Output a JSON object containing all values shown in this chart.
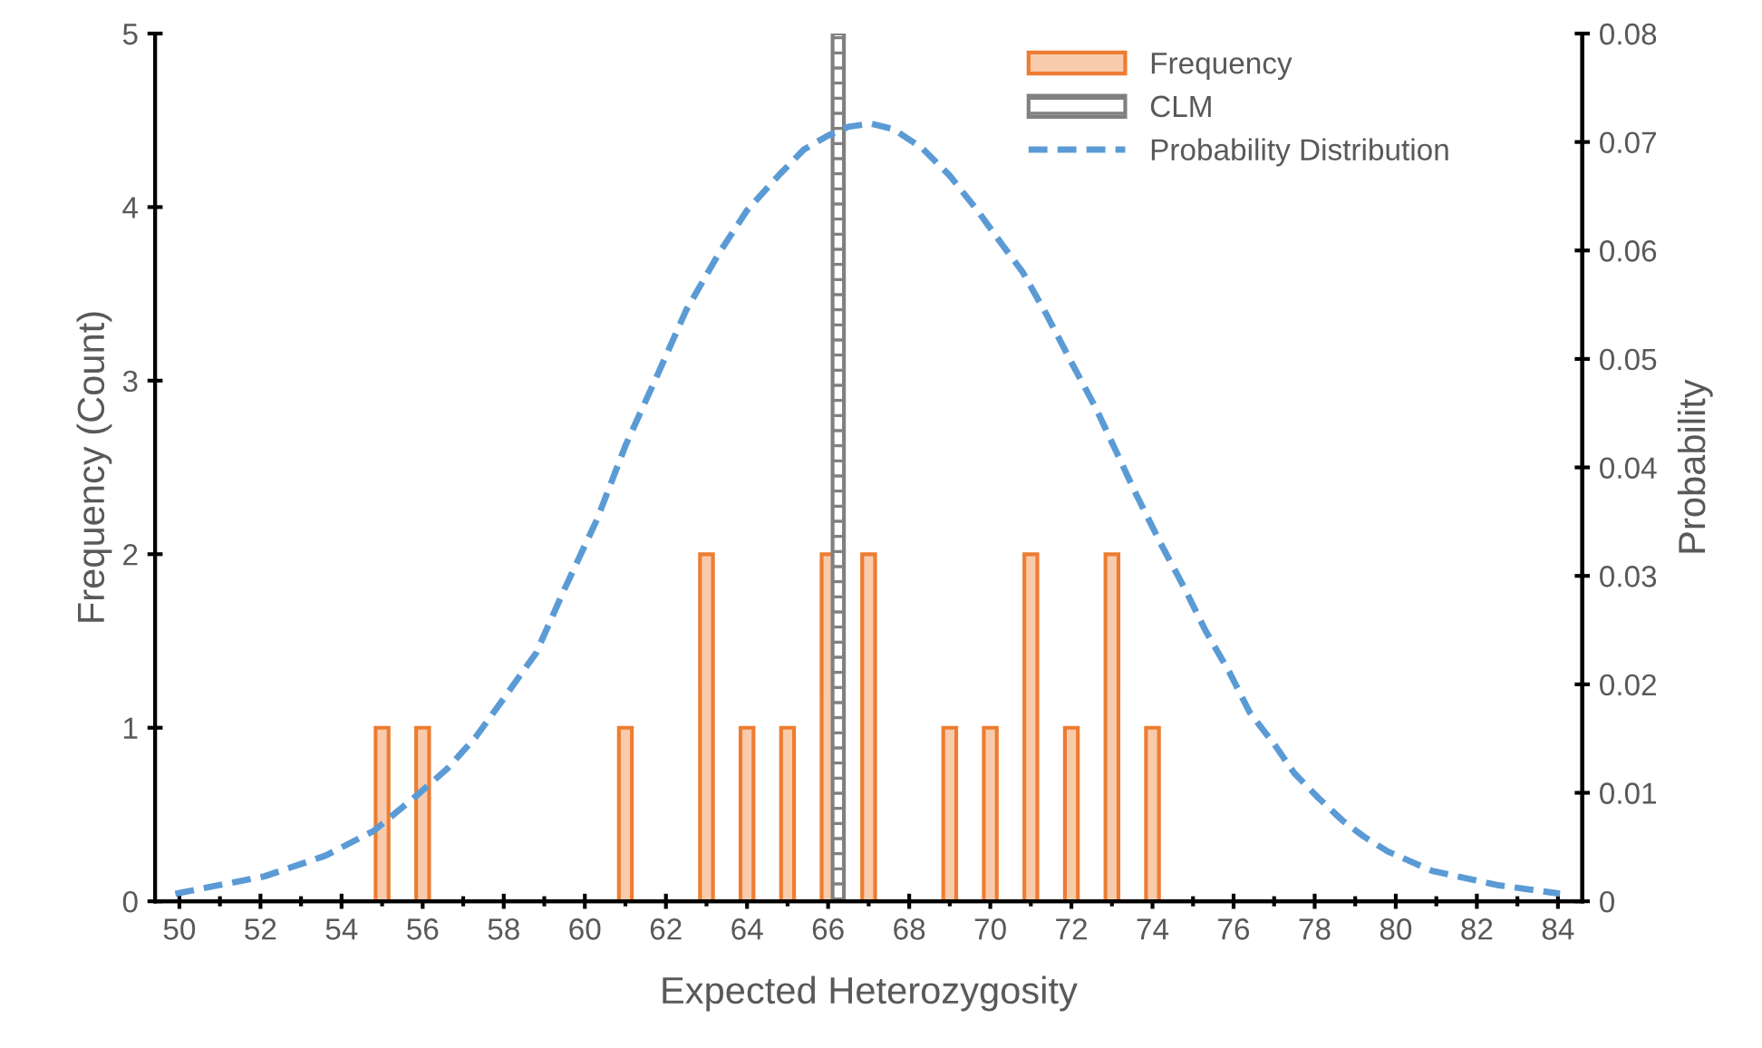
{
  "chart_data": {
    "type": "bar",
    "xlabel": "Expected Heterozygosity",
    "ylabel": "Frequency (Count)",
    "y2label": "Probability",
    "xlim": [
      49.4,
      84.6
    ],
    "xticks": [
      50,
      52,
      54,
      56,
      58,
      60,
      62,
      64,
      66,
      68,
      70,
      72,
      74,
      76,
      78,
      80,
      82,
      84
    ],
    "ylim": [
      0,
      5
    ],
    "yticks": [
      0,
      1,
      2,
      3,
      4,
      5
    ],
    "y2lim": [
      0,
      0.08
    ],
    "y2ticks": [
      0,
      0.01,
      0.02,
      0.03,
      0.04,
      0.05,
      0.06,
      0.07,
      0.08
    ],
    "grid": false,
    "legend": "top right",
    "series": [
      {
        "name": "Frequency",
        "color": "#f8cbad",
        "x": [
          55,
          56,
          61,
          63,
          64,
          65,
          66,
          67,
          69,
          70,
          71,
          72,
          73,
          74
        ],
        "values": [
          1,
          1,
          1,
          2,
          1,
          1,
          2,
          2,
          1,
          1,
          2,
          1,
          2,
          1
        ]
      },
      {
        "name": "CLM",
        "color": "#808080",
        "x": [
          66.25
        ],
        "values": [
          5
        ]
      },
      {
        "name": "Probability Distribution",
        "type": "line",
        "axis": "y2",
        "color": "#5b9bd5",
        "line_style": "dashed",
        "marker": "none",
        "x": [
          49.9,
          52.1,
          53.6,
          54.8,
          55.9,
          56.6,
          57.3,
          58.0,
          58.8,
          59.5,
          60.3,
          61.0,
          61.8,
          62.5,
          63.3,
          64.0,
          64.8,
          65.4,
          66.0,
          66.5,
          67.05,
          67.6,
          68.3,
          69.0,
          69.7,
          70.3,
          70.8,
          71.4,
          72.0,
          72.6,
          73.1,
          73.6,
          74.2,
          74.8,
          75.3,
          75.9,
          76.4,
          77.0,
          77.5,
          78.1,
          78.7,
          79.2,
          79.8,
          80.9,
          82.5,
          84.05
        ],
        "values": [
          0.0007,
          0.0023,
          0.0042,
          0.0065,
          0.0099,
          0.0122,
          0.0151,
          0.0187,
          0.0229,
          0.0288,
          0.0352,
          0.042,
          0.0486,
          0.0545,
          0.0597,
          0.0637,
          0.067,
          0.0693,
          0.0706,
          0.0714,
          0.0717,
          0.0712,
          0.0695,
          0.0669,
          0.0636,
          0.0605,
          0.058,
          0.054,
          0.0497,
          0.0455,
          0.0415,
          0.0375,
          0.033,
          0.0288,
          0.025,
          0.0211,
          0.0174,
          0.0145,
          0.0118,
          0.0095,
          0.0074,
          0.006,
          0.0046,
          0.0028,
          0.0015,
          0.0007
        ]
      }
    ]
  }
}
